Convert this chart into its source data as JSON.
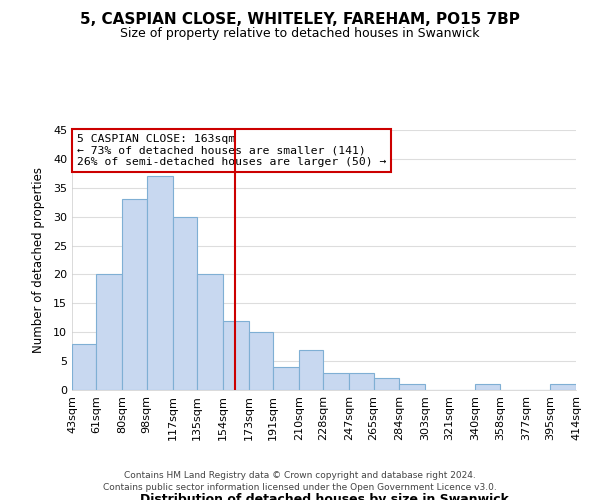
{
  "title": "5, CASPIAN CLOSE, WHITELEY, FAREHAM, PO15 7BP",
  "subtitle": "Size of property relative to detached houses in Swanwick",
  "xlabel": "Distribution of detached houses by size in Swanwick",
  "ylabel": "Number of detached properties",
  "bar_edges": [
    43,
    61,
    80,
    98,
    117,
    135,
    154,
    173,
    191,
    210,
    228,
    247,
    265,
    284,
    303,
    321,
    340,
    358,
    377,
    395,
    414
  ],
  "bar_heights": [
    8,
    20,
    33,
    37,
    30,
    20,
    12,
    10,
    4,
    7,
    3,
    3,
    2,
    1,
    0,
    0,
    1,
    0,
    0,
    1
  ],
  "bar_color": "#c8d8f0",
  "bar_edge_color": "#7fafd4",
  "vline_x": 163,
  "vline_color": "#cc0000",
  "ylim": [
    0,
    45
  ],
  "tick_labels": [
    "43sqm",
    "61sqm",
    "80sqm",
    "98sqm",
    "117sqm",
    "135sqm",
    "154sqm",
    "173sqm",
    "191sqm",
    "210sqm",
    "228sqm",
    "247sqm",
    "265sqm",
    "284sqm",
    "303sqm",
    "321sqm",
    "340sqm",
    "358sqm",
    "377sqm",
    "395sqm",
    "414sqm"
  ],
  "annotation_title": "5 CASPIAN CLOSE: 163sqm",
  "annotation_line1": "← 73% of detached houses are smaller (141)",
  "annotation_line2": "26% of semi-detached houses are larger (50) →",
  "annotation_box_color": "#ffffff",
  "annotation_box_edge": "#cc0000",
  "footer1": "Contains HM Land Registry data © Crown copyright and database right 2024.",
  "footer2": "Contains public sector information licensed under the Open Government Licence v3.0.",
  "background_color": "#ffffff",
  "grid_color": "#dddddd"
}
